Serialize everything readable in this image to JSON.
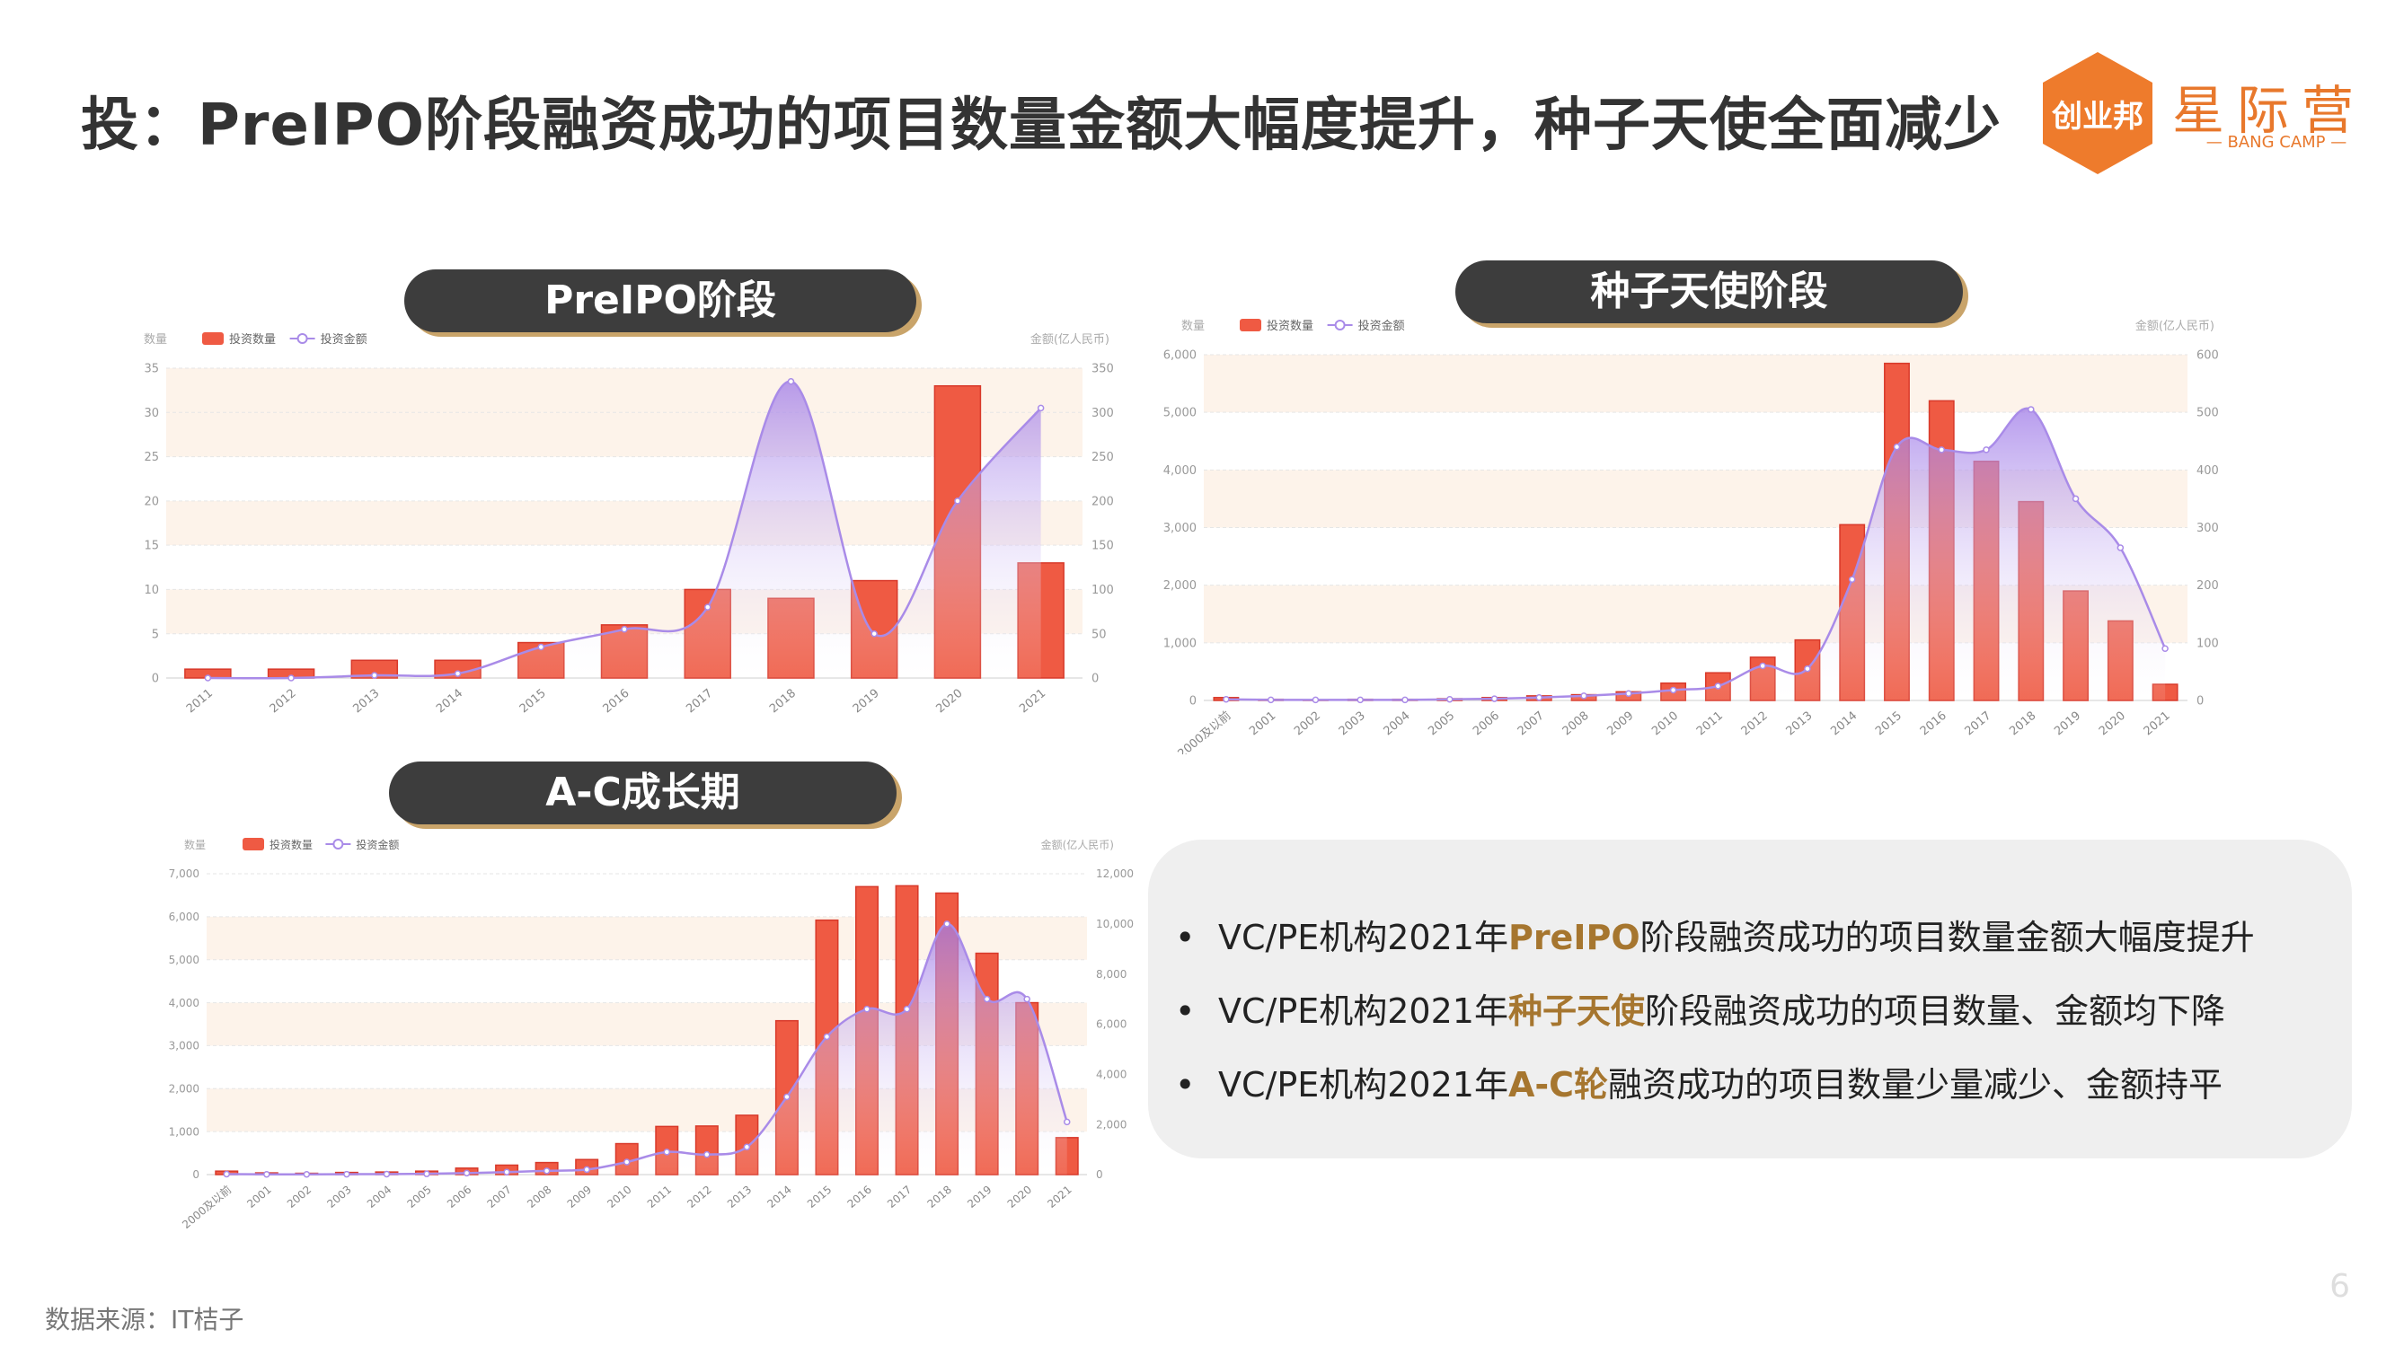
{
  "title": "投：PreIPO阶段融资成功的项目数量金额大幅度提升，种子天使全面减少",
  "logo": {
    "badge": "创业邦",
    "name": "星际营",
    "english": "— BANG CAMP —"
  },
  "colors": {
    "bar": "#ef5a43",
    "bar_edge": "#d8392a",
    "line": "#a98be8",
    "band": "#fdf3ea",
    "accent": "#a6762f"
  },
  "panels": {
    "preipo": "PreIPO阶段",
    "seed": "种子天使阶段",
    "ac": "A-C成长期"
  },
  "chart_data": [
    {
      "id": "preipo",
      "type": "bar",
      "legend": [
        "投资数量",
        "投资金额"
      ],
      "ylabel_left": "数量",
      "ylabel_right": "金额(亿人民币)",
      "categories": [
        "2011",
        "2012",
        "2013",
        "2014",
        "2015",
        "2016",
        "2017",
        "2018",
        "2019",
        "2020",
        "2021"
      ],
      "series": [
        {
          "name": "投资数量",
          "type": "bar",
          "axis": "left",
          "values": [
            1,
            1,
            2,
            2,
            4,
            6,
            10,
            9,
            11,
            33,
            13
          ]
        },
        {
          "name": "投资金额",
          "type": "area",
          "axis": "right",
          "values": [
            0,
            0,
            3,
            5,
            35,
            55,
            80,
            335,
            50,
            200,
            305
          ]
        }
      ],
      "ylim_left": [
        0,
        35
      ],
      "ylim_right": [
        0,
        350
      ],
      "yticks_left": [
        "0",
        "5",
        "10",
        "15",
        "20",
        "25",
        "30",
        "35"
      ],
      "yticks_right": [
        "0",
        "50",
        "100",
        "150",
        "200",
        "250",
        "300",
        "350"
      ],
      "band_rows": [
        1,
        3,
        5,
        6
      ]
    },
    {
      "id": "seed",
      "type": "bar",
      "legend": [
        "投资数量",
        "投资金额"
      ],
      "ylabel_left": "数量",
      "ylabel_right": "金额(亿人民币)",
      "categories": [
        "2000及以前",
        "2001",
        "2002",
        "2003",
        "2004",
        "2005",
        "2006",
        "2007",
        "2008",
        "2009",
        "2010",
        "2011",
        "2012",
        "2013",
        "2014",
        "2015",
        "2016",
        "2017",
        "2018",
        "2019",
        "2020",
        "2021"
      ],
      "series": [
        {
          "name": "投资数量",
          "type": "bar",
          "axis": "left",
          "values": [
            50,
            20,
            10,
            20,
            20,
            30,
            50,
            80,
            100,
            150,
            300,
            480,
            750,
            1050,
            3050,
            5850,
            5200,
            4150,
            3450,
            1900,
            1380,
            280
          ]
        },
        {
          "name": "投资金额",
          "type": "area",
          "axis": "right",
          "values": [
            2,
            1,
            1,
            1,
            1,
            2,
            3,
            5,
            8,
            12,
            18,
            25,
            60,
            55,
            210,
            440,
            435,
            435,
            505,
            350,
            265,
            90
          ]
        }
      ],
      "ylim_left": [
        0,
        6000
      ],
      "ylim_right": [
        0,
        600
      ],
      "yticks_left": [
        "0",
        "1,000",
        "2,000",
        "3,000",
        "4,000",
        "5,000",
        "6,000"
      ],
      "yticks_right": [
        "0",
        "100",
        "200",
        "300",
        "400",
        "500",
        "600"
      ],
      "band_rows": [
        1,
        3,
        5
      ]
    },
    {
      "id": "ac",
      "type": "bar",
      "legend": [
        "投资数量",
        "投资金额"
      ],
      "ylabel_left": "数量",
      "ylabel_right": "金额(亿人民币)",
      "categories": [
        "2000及以前",
        "2001",
        "2002",
        "2003",
        "2004",
        "2005",
        "2006",
        "2007",
        "2008",
        "2009",
        "2010",
        "2011",
        "2012",
        "2013",
        "2014",
        "2015",
        "2016",
        "2017",
        "2018",
        "2019",
        "2020",
        "2021"
      ],
      "series": [
        {
          "name": "投资数量",
          "type": "bar",
          "axis": "left",
          "values": [
            80,
            40,
            30,
            50,
            60,
            80,
            150,
            220,
            280,
            350,
            720,
            1120,
            1130,
            1380,
            3580,
            5920,
            6700,
            6720,
            6550,
            5150,
            4000,
            860
          ]
        },
        {
          "name": "投资金额",
          "type": "area",
          "axis": "right",
          "values": [
            20,
            10,
            10,
            15,
            20,
            30,
            60,
            100,
            150,
            200,
            500,
            900,
            800,
            1100,
            3100,
            5500,
            6600,
            6600,
            10000,
            7000,
            7000,
            2100
          ]
        }
      ],
      "ylim_left": [
        0,
        7000
      ],
      "ylim_right": [
        0,
        12000
      ],
      "yticks_left": [
        "0",
        "1,000",
        "2,000",
        "3,000",
        "4,000",
        "5,000",
        "6,000",
        "7,000"
      ],
      "yticks_right": [
        "0",
        "2,000",
        "4,000",
        "6,000",
        "8,000",
        "10,000",
        "12,000"
      ],
      "band_rows": [
        1,
        3,
        5
      ]
    }
  ],
  "bullets": [
    {
      "dot": "•",
      "prefix": "VC/PE机构2021年",
      "highlight": "PreIPO",
      "suffix": "阶段融资成功的项目数量金额大幅度提升"
    },
    {
      "dot": "•",
      "prefix": "VC/PE机构2021年",
      "highlight": "种子天使",
      "suffix": "阶段融资成功的项目数量、金额均下降"
    },
    {
      "dot": "•",
      "prefix": "VC/PE机构2021年",
      "highlight": "A-C轮",
      "suffix": "融资成功的项目数量少量减少、金额持平"
    }
  ],
  "source": "数据来源：IT桔子",
  "page_number": "6"
}
